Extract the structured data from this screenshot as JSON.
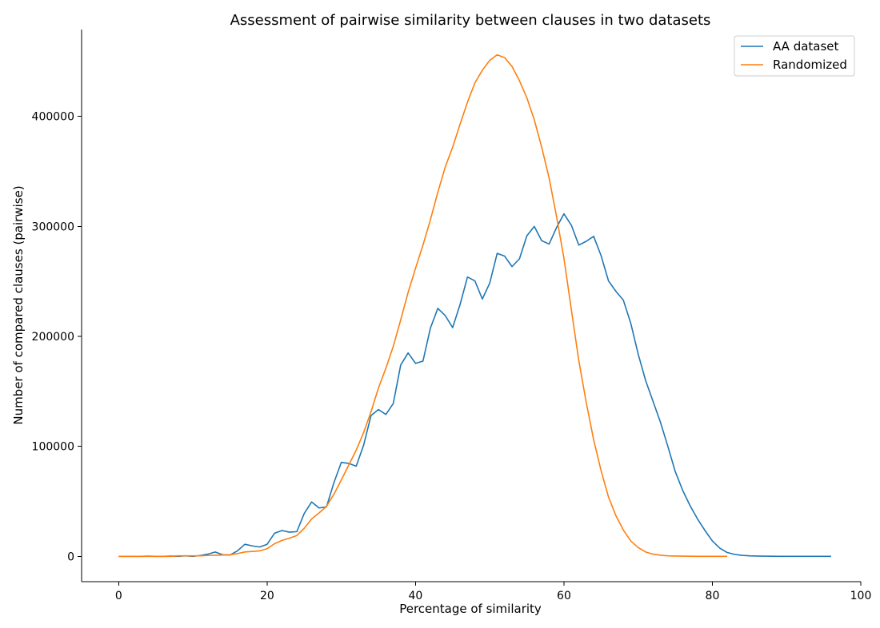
{
  "chart_data": {
    "type": "line",
    "title": "Assessment of pairwise similarity between clauses in two datasets",
    "xlabel": "Percentage of similarity",
    "ylabel": "Number of compared clauses (pairwise)",
    "xlim": [
      -5,
      100
    ],
    "ylim": [
      -23000,
      479000
    ],
    "xticks": [
      0,
      20,
      40,
      60,
      80,
      100
    ],
    "yticks": [
      0,
      100000,
      200000,
      300000,
      400000
    ],
    "grid": false,
    "legend_position": "top-right",
    "series": [
      {
        "name": "AA dataset",
        "color": "#1f77b4",
        "x": [
          0,
          1,
          2,
          3,
          4,
          5,
          6,
          7,
          8,
          9,
          10,
          11,
          12,
          13,
          14,
          15,
          16,
          17,
          18,
          19,
          20,
          21,
          22,
          23,
          24,
          25,
          26,
          27,
          28,
          29,
          30,
          31,
          32,
          33,
          34,
          35,
          36,
          37,
          38,
          39,
          40,
          41,
          42,
          43,
          44,
          45,
          46,
          47,
          48,
          49,
          50,
          51,
          52,
          53,
          54,
          55,
          56,
          57,
          58,
          59,
          60,
          61,
          62,
          63,
          64,
          65,
          66,
          67,
          68,
          69,
          70,
          71,
          72,
          73,
          74,
          75,
          76,
          77,
          78,
          79,
          80,
          81,
          82,
          83,
          84,
          85,
          86,
          87,
          88,
          89,
          90,
          91,
          92,
          93,
          94,
          95,
          96
        ],
        "y": [
          0,
          0,
          0,
          0,
          200,
          0,
          0,
          300,
          0,
          500,
          0,
          800,
          2000,
          4000,
          1500,
          1200,
          5000,
          11000,
          9500,
          8500,
          11000,
          21000,
          23500,
          22000,
          22500,
          39000,
          49500,
          44000,
          45000,
          67000,
          85500,
          84500,
          82000,
          101000,
          128000,
          133500,
          129000,
          139000,
          174000,
          185000,
          175500,
          177500,
          207500,
          225500,
          219000,
          208000,
          229000,
          254000,
          250500,
          234000,
          248500,
          275500,
          273000,
          263500,
          270500,
          291500,
          300000,
          287000,
          284000,
          299000,
          311500,
          301000,
          283000,
          286500,
          291000,
          273500,
          250500,
          241000,
          233000,
          212000,
          184000,
          160000,
          141000,
          122000,
          100000,
          77000,
          60000,
          46000,
          34000,
          23500,
          14000,
          7500,
          3500,
          1800,
          900,
          500,
          300,
          200,
          100,
          0,
          0,
          0,
          0,
          0,
          0,
          0,
          0
        ]
      },
      {
        "name": "Randomized",
        "color": "#ff7f0e",
        "x": [
          0,
          1,
          2,
          3,
          4,
          5,
          6,
          7,
          8,
          9,
          10,
          11,
          12,
          13,
          14,
          15,
          16,
          17,
          18,
          19,
          20,
          21,
          22,
          23,
          24,
          25,
          26,
          27,
          28,
          29,
          30,
          31,
          32,
          33,
          34,
          35,
          36,
          37,
          38,
          39,
          40,
          41,
          42,
          43,
          44,
          45,
          46,
          47,
          48,
          49,
          50,
          51,
          52,
          53,
          54,
          55,
          56,
          57,
          58,
          59,
          60,
          61,
          62,
          63,
          64,
          65,
          66,
          67,
          68,
          69,
          70,
          71,
          72,
          73,
          74,
          75,
          76,
          77,
          78,
          79,
          80,
          81,
          82
        ],
        "y": [
          0,
          0,
          0,
          0,
          0,
          0,
          0,
          0,
          500,
          500,
          500,
          500,
          800,
          1000,
          1200,
          1500,
          2500,
          4000,
          4500,
          5000,
          7000,
          11500,
          14500,
          16500,
          19000,
          25500,
          34000,
          39500,
          45500,
          56500,
          69500,
          83000,
          96500,
          112500,
          131500,
          153000,
          171000,
          191000,
          215000,
          240000,
          262000,
          283000,
          306000,
          331000,
          354000,
          372000,
          393000,
          413000,
          430500,
          442000,
          451000,
          456000,
          453500,
          445500,
          432500,
          417000,
          397000,
          372000,
          344000,
          309000,
          271000,
          224000,
          178000,
          140000,
          106000,
          78000,
          54000,
          37000,
          24000,
          14000,
          8000,
          4000,
          2000,
          1000,
          500,
          300,
          200,
          100,
          50,
          0,
          0,
          0,
          0
        ]
      }
    ]
  }
}
